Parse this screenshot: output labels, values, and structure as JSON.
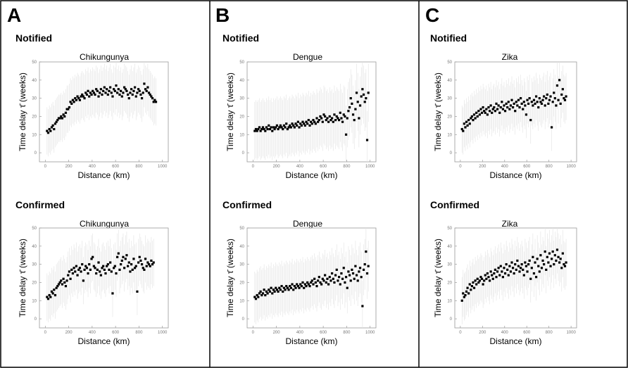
{
  "panels": [
    {
      "letter": "A"
    },
    {
      "letter": "B"
    },
    {
      "letter": "C"
    }
  ],
  "chart_data": [
    {
      "type": "scatter",
      "panel": "A",
      "section": "Notified",
      "title": "Chikungunya",
      "xlabel": "Distance (km)",
      "ylabel": "Time delay τ̄ (weeks)",
      "xlim": [
        -50,
        1050
      ],
      "ylim": [
        -5,
        50
      ],
      "xticks": [
        0,
        200,
        400,
        600,
        800,
        1000
      ],
      "yticks": [
        0,
        10,
        20,
        30,
        40,
        50
      ],
      "x": [
        15,
        25,
        35,
        45,
        55,
        65,
        75,
        85,
        95,
        105,
        115,
        125,
        135,
        145,
        155,
        165,
        175,
        185,
        195,
        205,
        215,
        225,
        235,
        245,
        255,
        265,
        275,
        285,
        295,
        305,
        315,
        325,
        335,
        345,
        355,
        365,
        375,
        385,
        395,
        405,
        415,
        425,
        435,
        445,
        455,
        465,
        475,
        485,
        495,
        505,
        515,
        525,
        535,
        545,
        555,
        565,
        575,
        585,
        595,
        605,
        615,
        625,
        635,
        645,
        655,
        665,
        675,
        685,
        695,
        705,
        715,
        725,
        735,
        745,
        755,
        765,
        775,
        785,
        795,
        805,
        815,
        825,
        835,
        845,
        855,
        865,
        875,
        885,
        895,
        905,
        915,
        925,
        935,
        945
      ],
      "y": [
        12,
        11,
        13,
        12,
        14,
        15,
        13,
        16,
        17,
        18,
        19,
        19,
        20,
        19,
        21,
        20,
        22,
        24,
        24,
        25,
        28,
        27,
        29,
        28,
        30,
        29,
        31,
        30,
        29,
        31,
        32,
        31,
        30,
        33,
        32,
        34,
        31,
        33,
        32,
        34,
        33,
        32,
        35,
        34,
        31,
        33,
        35,
        32,
        34,
        36,
        33,
        35,
        32,
        34,
        36,
        33,
        31,
        35,
        34,
        37,
        33,
        35,
        32,
        34,
        31,
        33,
        36,
        35,
        34,
        32,
        30,
        33,
        35,
        32,
        34,
        36,
        31,
        33,
        35,
        34,
        32,
        30,
        33,
        38,
        35,
        34,
        36,
        33,
        32,
        31,
        30,
        28,
        29,
        28
      ],
      "err": 13
    },
    {
      "type": "scatter",
      "panel": "A",
      "section": "Confirmed",
      "title": "Chikungunya",
      "xlabel": "Distance (km)",
      "ylabel": "Time delay τ̄ (weeks)",
      "xlim": [
        -50,
        1050
      ],
      "ylim": [
        -5,
        50
      ],
      "xticks": [
        0,
        200,
        400,
        600,
        800,
        1000
      ],
      "yticks": [
        0,
        10,
        20,
        30,
        40,
        50
      ],
      "x": [
        15,
        25,
        35,
        45,
        55,
        65,
        75,
        85,
        95,
        105,
        115,
        125,
        135,
        145,
        155,
        165,
        175,
        185,
        195,
        205,
        215,
        225,
        235,
        245,
        255,
        265,
        275,
        285,
        295,
        305,
        315,
        325,
        335,
        345,
        355,
        365,
        375,
        385,
        395,
        405,
        415,
        425,
        435,
        445,
        455,
        465,
        475,
        485,
        495,
        505,
        515,
        525,
        535,
        545,
        555,
        565,
        575,
        585,
        595,
        605,
        615,
        625,
        635,
        645,
        655,
        665,
        675,
        685,
        695,
        705,
        715,
        725,
        735,
        745,
        755,
        765,
        775,
        785,
        795,
        805,
        815,
        825,
        835,
        845,
        855,
        865,
        875,
        885,
        895,
        905,
        915,
        925
      ],
      "y": [
        12,
        11,
        13,
        12,
        15,
        14,
        16,
        13,
        17,
        18,
        19,
        20,
        21,
        19,
        22,
        20,
        18,
        21,
        24,
        26,
        22,
        27,
        25,
        28,
        26,
        29,
        24,
        27,
        28,
        26,
        30,
        21,
        27,
        29,
        28,
        25,
        30,
        27,
        33,
        34,
        29,
        28,
        25,
        27,
        31,
        26,
        24,
        28,
        29,
        27,
        25,
        29,
        30,
        27,
        31,
        26,
        14,
        28,
        29,
        25,
        34,
        36,
        27,
        30,
        32,
        34,
        28,
        33,
        35,
        29,
        31,
        26,
        30,
        27,
        33,
        28,
        29,
        15,
        31,
        34,
        32,
        30,
        28,
        27,
        33,
        29,
        31,
        30,
        29,
        32,
        30,
        31
      ],
      "err": 13
    },
    {
      "type": "scatter",
      "panel": "B",
      "section": "Notified",
      "title": "Dengue",
      "xlabel": "Distance (km)",
      "ylabel": "Time delay τ̄ (weeks)",
      "xlim": [
        -50,
        1050
      ],
      "ylim": [
        -5,
        50
      ],
      "xticks": [
        0,
        200,
        400,
        600,
        800,
        1000
      ],
      "yticks": [
        0,
        10,
        20,
        30,
        40,
        50
      ],
      "x": [
        15,
        25,
        35,
        45,
        55,
        65,
        75,
        85,
        95,
        105,
        115,
        125,
        135,
        145,
        155,
        165,
        175,
        185,
        195,
        205,
        215,
        225,
        235,
        245,
        255,
        265,
        275,
        285,
        295,
        305,
        315,
        325,
        335,
        345,
        355,
        365,
        375,
        385,
        395,
        405,
        415,
        425,
        435,
        445,
        455,
        465,
        475,
        485,
        495,
        505,
        515,
        525,
        535,
        545,
        555,
        565,
        575,
        585,
        595,
        605,
        615,
        625,
        635,
        645,
        655,
        665,
        675,
        685,
        695,
        705,
        715,
        725,
        735,
        745,
        755,
        765,
        775,
        785,
        795,
        805,
        815,
        825,
        835,
        845,
        855,
        865,
        875,
        885,
        895,
        905,
        915,
        925,
        935,
        945,
        955,
        965,
        975,
        985
      ],
      "y": [
        12,
        13,
        12,
        13,
        14,
        12,
        13,
        14,
        13,
        12,
        14,
        13,
        15,
        13,
        14,
        12,
        14,
        13,
        14,
        15,
        13,
        14,
        15,
        14,
        13,
        15,
        14,
        16,
        13,
        14,
        15,
        14,
        16,
        15,
        14,
        16,
        15,
        17,
        14,
        16,
        15,
        17,
        16,
        15,
        17,
        16,
        18,
        15,
        17,
        16,
        18,
        17,
        16,
        19,
        17,
        18,
        20,
        19,
        17,
        21,
        20,
        18,
        19,
        17,
        20,
        18,
        19,
        17,
        21,
        18,
        20,
        19,
        18,
        22,
        19,
        17,
        21,
        20,
        10,
        19,
        23,
        25,
        30,
        27,
        21,
        18,
        24,
        33,
        28,
        19,
        26,
        31,
        35,
        32,
        28,
        30,
        7,
        33
      ],
      "err": 16
    },
    {
      "type": "scatter",
      "panel": "B",
      "section": "Confirmed",
      "title": "Dengue",
      "xlabel": "Distance (km)",
      "ylabel": "Time delay τ̄ (weeks)",
      "xlim": [
        -50,
        1050
      ],
      "ylim": [
        -5,
        50
      ],
      "xticks": [
        0,
        200,
        400,
        600,
        800,
        1000
      ],
      "yticks": [
        0,
        10,
        20,
        30,
        40,
        50
      ],
      "x": [
        15,
        25,
        35,
        45,
        55,
        65,
        75,
        85,
        95,
        105,
        115,
        125,
        135,
        145,
        155,
        165,
        175,
        185,
        195,
        205,
        215,
        225,
        235,
        245,
        255,
        265,
        275,
        285,
        295,
        305,
        315,
        325,
        335,
        345,
        355,
        365,
        375,
        385,
        395,
        405,
        415,
        425,
        435,
        445,
        455,
        465,
        475,
        485,
        495,
        505,
        515,
        525,
        535,
        545,
        555,
        565,
        575,
        585,
        595,
        605,
        615,
        625,
        635,
        645,
        655,
        665,
        675,
        685,
        695,
        705,
        715,
        725,
        735,
        745,
        755,
        765,
        775,
        785,
        795,
        805,
        815,
        825,
        835,
        845,
        855,
        865,
        875,
        885,
        895,
        905,
        915,
        925,
        935,
        945,
        955,
        965,
        975,
        985
      ],
      "y": [
        12,
        11,
        13,
        12,
        14,
        15,
        13,
        14,
        16,
        13,
        15,
        14,
        16,
        15,
        17,
        14,
        16,
        15,
        17,
        16,
        15,
        17,
        16,
        18,
        15,
        17,
        16,
        18,
        17,
        16,
        18,
        17,
        19,
        16,
        18,
        17,
        19,
        18,
        17,
        19,
        18,
        20,
        17,
        19,
        18,
        20,
        19,
        18,
        20,
        21,
        19,
        22,
        20,
        18,
        21,
        23,
        20,
        19,
        22,
        21,
        24,
        20,
        22,
        19,
        23,
        21,
        25,
        22,
        20,
        24,
        27,
        21,
        23,
        19,
        25,
        22,
        28,
        20,
        23,
        17,
        26,
        24,
        21,
        27,
        25,
        22,
        29,
        24,
        21,
        26,
        28,
        23,
        7,
        27,
        30,
        37,
        25,
        29
      ],
      "err": 14
    },
    {
      "type": "scatter",
      "panel": "C",
      "section": "Notified",
      "title": "Zika",
      "xlabel": "Distance (km)",
      "ylabel": "Time delay τ̄ (weeks)",
      "xlim": [
        -50,
        1050
      ],
      "ylim": [
        -5,
        50
      ],
      "xticks": [
        0,
        200,
        400,
        600,
        800,
        1000
      ],
      "yticks": [
        0,
        10,
        20,
        30,
        40,
        50
      ],
      "x": [
        15,
        25,
        35,
        45,
        55,
        65,
        75,
        85,
        95,
        105,
        115,
        125,
        135,
        145,
        155,
        165,
        175,
        185,
        195,
        205,
        215,
        225,
        235,
        245,
        255,
        265,
        275,
        285,
        295,
        305,
        315,
        325,
        335,
        345,
        355,
        365,
        375,
        385,
        395,
        405,
        415,
        425,
        435,
        445,
        455,
        465,
        475,
        485,
        495,
        505,
        515,
        525,
        535,
        545,
        555,
        565,
        575,
        585,
        595,
        605,
        615,
        625,
        635,
        645,
        655,
        665,
        675,
        685,
        695,
        705,
        715,
        725,
        735,
        745,
        755,
        765,
        775,
        785,
        795,
        805,
        815,
        825,
        835,
        845,
        855,
        865,
        875,
        885,
        895,
        905,
        915,
        925,
        935,
        945,
        955
      ],
      "y": [
        13,
        12,
        16,
        14,
        17,
        15,
        18,
        16,
        19,
        20,
        18,
        21,
        19,
        22,
        20,
        23,
        21,
        24,
        22,
        25,
        23,
        22,
        24,
        21,
        25,
        23,
        26,
        22,
        24,
        25,
        23,
        27,
        24,
        26,
        22,
        25,
        28,
        24,
        26,
        23,
        27,
        25,
        28,
        24,
        26,
        29,
        25,
        27,
        23,
        28,
        26,
        29,
        25,
        30,
        27,
        24,
        28,
        26,
        21,
        29,
        27,
        30,
        18,
        28,
        26,
        29,
        27,
        31,
        28,
        25,
        30,
        28,
        27,
        29,
        31,
        26,
        30,
        32,
        27,
        29,
        31,
        14,
        28,
        33,
        30,
        26,
        37,
        29,
        40,
        27,
        32,
        35,
        30,
        29,
        31
      ],
      "err": 13
    },
    {
      "type": "scatter",
      "panel": "C",
      "section": "Confirmed",
      "title": "Zika",
      "xlabel": "Distance (km)",
      "ylabel": "Time delay τ̄ (weeks)",
      "xlim": [
        -50,
        1050
      ],
      "ylim": [
        -5,
        50
      ],
      "xticks": [
        0,
        200,
        400,
        600,
        800,
        1000
      ],
      "yticks": [
        0,
        10,
        20,
        30,
        40,
        50
      ],
      "x": [
        15,
        25,
        35,
        45,
        55,
        65,
        75,
        85,
        95,
        105,
        115,
        125,
        135,
        145,
        155,
        165,
        175,
        185,
        195,
        205,
        215,
        225,
        235,
        245,
        255,
        265,
        275,
        285,
        295,
        305,
        315,
        325,
        335,
        345,
        355,
        365,
        375,
        385,
        395,
        405,
        415,
        425,
        435,
        445,
        455,
        465,
        475,
        485,
        495,
        505,
        515,
        525,
        535,
        545,
        555,
        565,
        575,
        585,
        595,
        605,
        615,
        625,
        635,
        645,
        655,
        665,
        675,
        685,
        695,
        705,
        715,
        725,
        735,
        745,
        755,
        765,
        775,
        785,
        795,
        805,
        815,
        825,
        835,
        845,
        855,
        865,
        875,
        885,
        895,
        905,
        915,
        925,
        935,
        945,
        955
      ],
      "y": [
        10,
        14,
        12,
        13,
        15,
        17,
        14,
        19,
        16,
        18,
        20,
        17,
        21,
        19,
        22,
        20,
        21,
        23,
        22,
        19,
        21,
        24,
        22,
        25,
        23,
        21,
        26,
        24,
        22,
        25,
        27,
        23,
        26,
        28,
        24,
        29,
        26,
        23,
        28,
        25,
        30,
        27,
        24,
        29,
        26,
        31,
        28,
        25,
        30,
        27,
        32,
        29,
        26,
        28,
        30,
        27,
        24,
        31,
        29,
        26,
        30,
        32,
        22,
        28,
        34,
        25,
        31,
        23,
        33,
        29,
        26,
        35,
        28,
        32,
        30,
        37,
        27,
        34,
        31,
        36,
        29,
        33,
        37,
        30,
        35,
        32,
        38,
        34,
        31,
        33,
        28,
        36,
        30,
        29,
        31
      ],
      "err": 13
    }
  ]
}
